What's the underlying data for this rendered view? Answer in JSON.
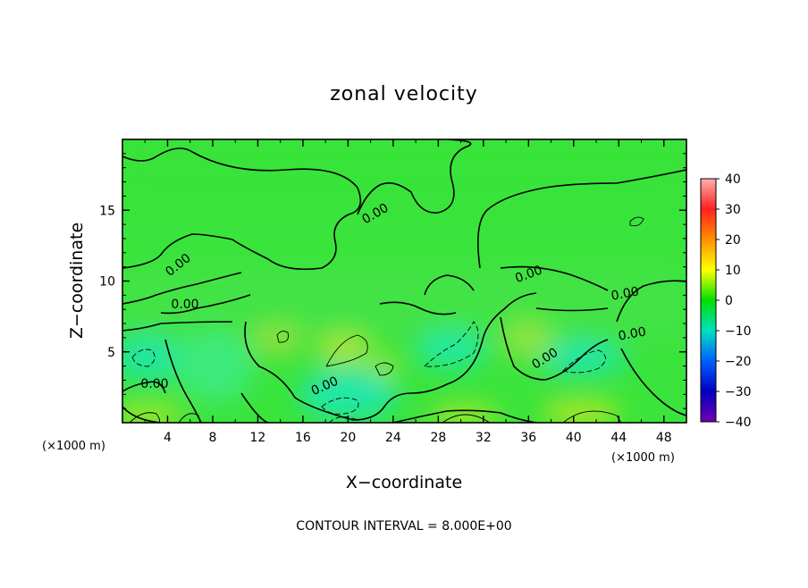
{
  "chart_data": {
    "type": "heatmap",
    "title": "zonal velocity",
    "xlabel": "X−coordinate",
    "ylabel": "Z−coordinate",
    "x_unit": "(×1000 m)",
    "xlim": [
      0,
      50
    ],
    "ylim": [
      0,
      20
    ],
    "x_ticks": [
      4,
      8,
      12,
      16,
      20,
      24,
      28,
      32,
      36,
      40,
      44,
      48
    ],
    "y_ticks": [
      5,
      10,
      15
    ],
    "colorbar": {
      "ticks": [
        40,
        30,
        20,
        10,
        0,
        -10,
        -20,
        -30,
        -40
      ],
      "colors": [
        "#ffb0b0",
        "#ff2020",
        "#ff9000",
        "#ffff00",
        "#00e000",
        "#00e0c0",
        "#0060ff",
        "#0000c0",
        "#7000b0"
      ],
      "range": [
        -40,
        40
      ]
    },
    "contour_interval": "CONTOUR INTERVAL = 8.000E+00",
    "contour_labels": [
      "0.00",
      "0.00",
      "0.00",
      "0.00",
      "0.00",
      "0.00",
      "0.00",
      "0.00",
      "0.00",
      "0.00",
      "0.00"
    ],
    "field_range_approx": [
      -10,
      10
    ]
  }
}
